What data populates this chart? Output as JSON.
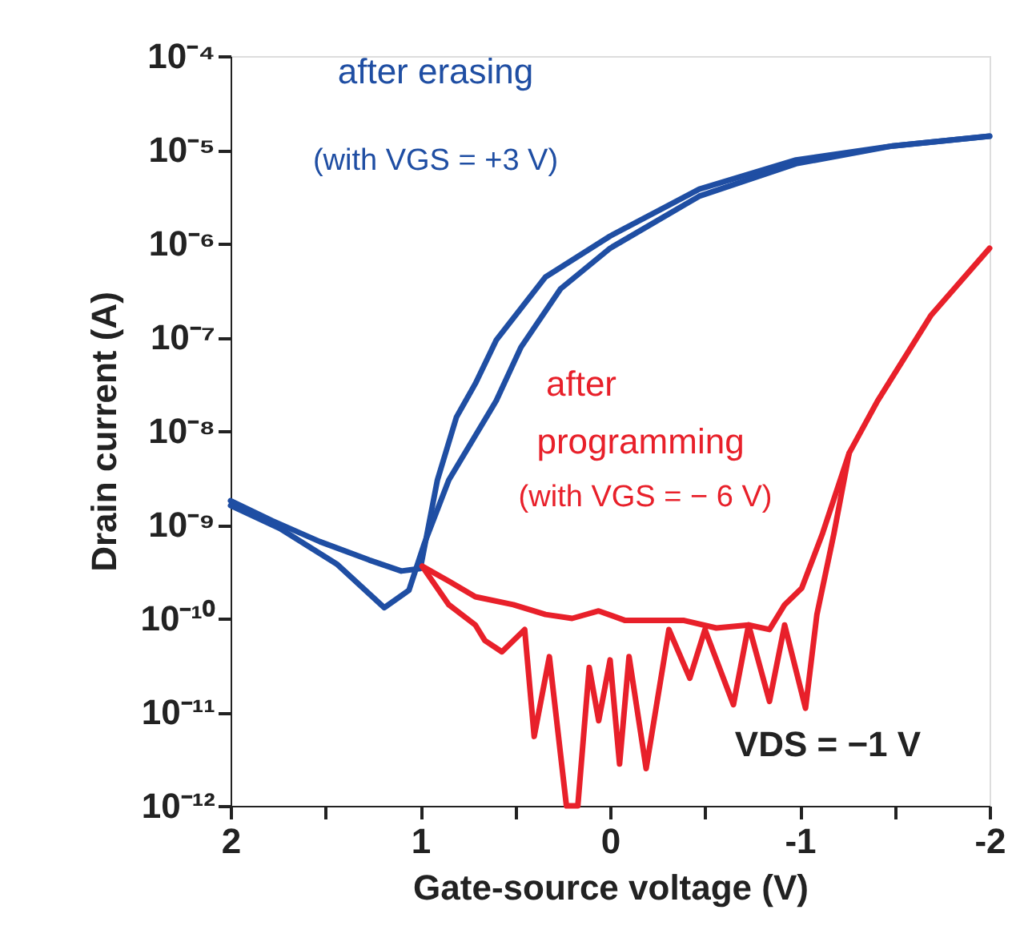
{
  "chart_data": {
    "type": "line",
    "xlabel": "Gate-source voltage (V)",
    "ylabel": "Drain current (A)",
    "xlim": [
      2,
      -2
    ],
    "ylim": [
      1e-12,
      0.0001
    ],
    "log": "y",
    "grid": false,
    "legend": false,
    "marker": "none",
    "line_style": "solid",
    "xticks": [
      2,
      {
        "value": 1.5,
        "label": null
      },
      1,
      {
        "value": 0.5,
        "label": null
      },
      0,
      {
        "value": -0.5,
        "label": null
      },
      {
        "value": -1,
        "label": "-1"
      },
      {
        "value": -1.5,
        "label": null
      },
      {
        "value": -2,
        "label": "-2"
      }
    ],
    "yticks": [
      {
        "value": 1e-12,
        "label": "10⁻¹²"
      },
      {
        "value": 1e-11,
        "label": "10⁻¹¹"
      },
      {
        "value": 1e-10,
        "label": "10⁻¹⁰"
      },
      {
        "value": 1e-09,
        "label": "10⁻⁹"
      },
      {
        "value": 1e-08,
        "label": "10⁻⁸"
      },
      {
        "value": 1e-07,
        "label": "10⁻⁷"
      },
      {
        "value": 1e-06,
        "label": "10⁻⁶"
      },
      {
        "value": 1e-05,
        "label": "10⁻⁵"
      },
      {
        "value": 0.0001,
        "label": "10⁻⁴"
      }
    ],
    "series": [
      {
        "color": "#1f4ea3",
        "x": [
          2.0,
          1.78,
          1.53,
          1.27,
          1.1,
          1.0,
          0.91,
          0.81,
          0.71,
          0.6,
          0.34,
          0.0,
          -0.47,
          -0.98,
          -1.49,
          -2.0
        ],
        "values": [
          1.8e-09,
          1.1e-09,
          6.6e-10,
          4.2e-10,
          3.2e-10,
          3.4e-10,
          3e-09,
          1.4e-08,
          3.2e-08,
          9.3e-08,
          4.4e-07,
          1.2e-06,
          3.8e-06,
          7.8e-06,
          1.1e-05,
          1.4e-05
        ]
      },
      {
        "color": "#1f4ea3",
        "x": [
          2.0,
          1.74,
          1.44,
          1.19,
          1.06,
          0.98,
          0.85,
          0.6,
          0.47,
          0.26,
          0.0,
          -0.47,
          -0.98,
          -1.49,
          -2.0
        ],
        "values": [
          1.6e-09,
          9.1e-10,
          3.8e-10,
          1.3e-10,
          2e-10,
          6.2e-10,
          3e-09,
          2.1e-08,
          7.8e-08,
          3.3e-07,
          8.9e-07,
          3.2e-06,
          7.1e-06,
          1.1e-05,
          1.4e-05
        ]
      },
      {
        "color": "#e8202a",
        "x": [
          0.99,
          0.85,
          0.71,
          0.51,
          0.34,
          0.2,
          0.06,
          -0.08,
          -0.19,
          -0.39,
          -0.56,
          -0.73,
          -0.84,
          -0.92,
          -1.01,
          -1.12,
          -1.26,
          -1.41,
          -1.69,
          -2.0
        ],
        "values": [
          3.6e-10,
          2.5e-10,
          1.7e-10,
          1.4e-10,
          1.1e-10,
          1e-10,
          1.2e-10,
          9.5e-11,
          9.5e-11,
          9.5e-11,
          7.9e-11,
          8.5e-11,
          7.6e-11,
          1.4e-10,
          2.1e-10,
          8.1e-10,
          5.8e-09,
          2.1e-08,
          1.7e-07,
          8.9e-07
        ]
      },
      {
        "color": "#e8202a",
        "x": [
          0.99,
          0.85,
          0.71,
          0.66,
          0.57,
          0.45,
          0.4,
          0.32,
          0.23,
          0.17,
          0.11,
          0.06,
          0.0,
          -0.05,
          -0.1,
          -0.19,
          -0.31,
          -0.42,
          -0.5,
          -0.65,
          -0.73,
          -0.84,
          -0.92,
          -1.03,
          -1.09,
          -1.18,
          -1.26
        ],
        "values": [
          3.6e-10,
          1.4e-10,
          8.5e-11,
          5.8e-11,
          4.4e-11,
          7.6e-11,
          5.5e-12,
          3.9e-11,
          1e-12,
          1e-12,
          3e-11,
          8.1e-12,
          3.6e-11,
          2.8e-12,
          3.9e-11,
          2.5e-12,
          7.6e-11,
          2.3e-11,
          7.6e-11,
          1.2e-11,
          8.5e-11,
          1.3e-11,
          8.5e-11,
          1.1e-11,
          1.1e-10,
          8.1e-10,
          5.8e-09
        ]
      }
    ],
    "annotations": [
      "after erasing",
      "(with VGS = +3 V)",
      "after",
      "programming",
      "(with VGS = − 6 V)",
      "VDS = −1 V"
    ]
  }
}
